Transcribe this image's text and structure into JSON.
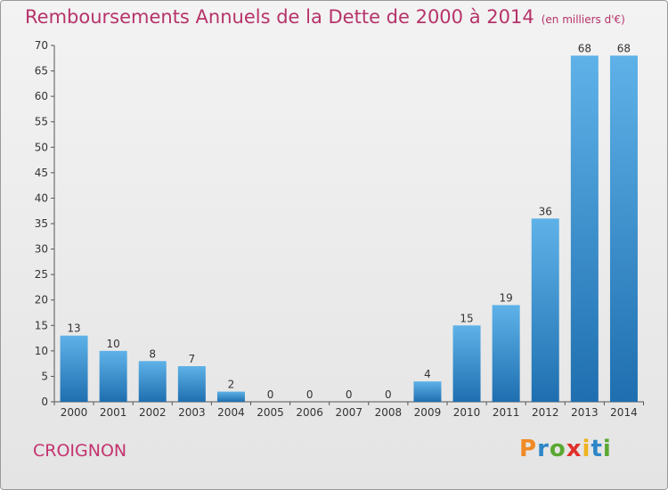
{
  "header": {
    "title": "Remboursements Annuels de la Dette de 2000 à 2014",
    "unit": "(en milliers d'€)"
  },
  "footer": {
    "commune": "CROIGNON",
    "brand": "Proxiti"
  },
  "colors": {
    "title": "#b6336a",
    "bar_top": "#5eb2e8",
    "bar_bottom": "#1f6fb0",
    "axis": "#555555",
    "brand_letters": [
      "#f08a24",
      "#2d86c7",
      "#5aa832",
      "#e0302c",
      "#f0b21c",
      "#2d86c7",
      "#5aa832"
    ]
  },
  "chart_data": {
    "type": "bar",
    "title": "Remboursements Annuels de la Dette de 2000 à 2014",
    "xlabel": "",
    "ylabel": "",
    "categories": [
      "2000",
      "2001",
      "2002",
      "2003",
      "2004",
      "2005",
      "2006",
      "2007",
      "2008",
      "2009",
      "2010",
      "2011",
      "2012",
      "2013",
      "2014"
    ],
    "values": [
      13,
      10,
      8,
      7,
      2,
      0,
      0,
      0,
      0,
      4,
      15,
      19,
      36,
      68,
      68
    ],
    "ylim": [
      0,
      70
    ],
    "yticks": [
      0,
      5,
      10,
      15,
      20,
      25,
      30,
      35,
      40,
      45,
      50,
      55,
      60,
      65,
      70
    ],
    "grid": false,
    "data_labels": true
  }
}
